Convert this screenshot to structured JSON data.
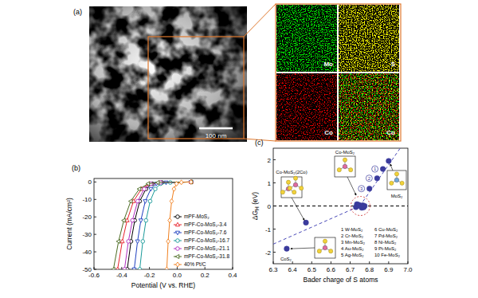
{
  "image_panel": {
    "panel": "(a)",
    "scale_bar": "100 nm",
    "maps": [
      "Mo",
      "S",
      "Co",
      "Co"
    ]
  },
  "chart_data": [
    {
      "type": "line",
      "panel": "(b)",
      "x_label": "Potential (V vs. RHE)",
      "y_label": "Current (mA/cm²)",
      "xlim": [
        -0.6,
        0.4
      ],
      "ylim": [
        -50,
        2
      ],
      "xticks": [
        -0.6,
        -0.4,
        -0.2,
        {
          "value": 0,
          "label": "0.0"
        },
        0.2,
        0.4
      ],
      "yticks": [
        -50,
        -40,
        -30,
        -20,
        -10,
        0
      ],
      "grid": false,
      "legend": "bottom-right",
      "series": [
        {
          "name": "mPF-MoS₂",
          "color": "#000000",
          "marker": "circle",
          "line_style": "solid",
          "x": [
            0.1,
            -0.11,
            -0.18,
            -0.225,
            -0.27,
            -0.306,
            -0.333,
            -0.36
          ],
          "values": [
            0,
            -0.3,
            -1,
            -4,
            -11,
            -22,
            -34,
            -50
          ]
        },
        {
          "name": "mPF-Co-MoS₂-3.4",
          "color": "#e8202a",
          "marker": "triangle",
          "line_style": "solid",
          "x": [
            0.1,
            -0.13,
            -0.2,
            -0.258,
            -0.315,
            -0.361,
            -0.396,
            -0.43
          ],
          "values": [
            0,
            -0.3,
            -1,
            -4,
            -11,
            -22,
            -34,
            -50
          ]
        },
        {
          "name": "mPF-Co-MoS₂-7.6",
          "color": "#1f3fbf",
          "marker": "triangle-down",
          "line_style": "solid",
          "x": [
            0.1,
            -0.08,
            -0.15,
            -0.19,
            -0.23,
            -0.262,
            -0.286,
            -0.31
          ],
          "values": [
            0,
            -0.3,
            -1,
            -4,
            -11,
            -22,
            -34,
            -50
          ]
        },
        {
          "name": "mPF-Co-MoS₂-16.7",
          "color": "#1a9a9a",
          "marker": "circle",
          "line_style": "solid",
          "x": [
            0.1,
            -0.05,
            -0.12,
            -0.158,
            -0.195,
            -0.225,
            -0.248,
            -0.27
          ],
          "values": [
            0,
            -0.3,
            -1,
            -4,
            -11,
            -22,
            -34,
            -50
          ]
        },
        {
          "name": "mPF-Co-MoS₂-21.1",
          "color": "#b030c0",
          "marker": "circle",
          "line_style": "solid",
          "x": [
            0.1,
            -0.12,
            -0.19,
            -0.238,
            -0.285,
            -0.323,
            -0.352,
            -0.38
          ],
          "values": [
            0,
            -0.3,
            -1,
            -4,
            -11,
            -22,
            -34,
            -50
          ]
        },
        {
          "name": "mPF-Co-MoS₂-31.8",
          "color": "#4a6a20",
          "marker": "triangle-left",
          "line_style": "solid",
          "x": [
            0.1,
            -0.14,
            -0.21,
            -0.273,
            -0.335,
            -0.385,
            -0.423,
            -0.46
          ],
          "values": [
            0,
            -0.3,
            -1,
            -4,
            -11,
            -22,
            -34,
            -50
          ]
        },
        {
          "name": "40% Pt/C",
          "color": "#f08020",
          "marker": "diamond",
          "line_style": "solid",
          "x": [
            0.1,
            0.03,
            -0.005,
            -0.023,
            -0.04,
            -0.054,
            -0.065,
            -0.075
          ],
          "values": [
            0,
            -0.2,
            -1,
            -4,
            -11,
            -22,
            -34,
            -50
          ]
        }
      ]
    },
    {
      "type": "scatter",
      "panel": "(c)",
      "x_label": "Bader charge of S atoms",
      "y_label": "ΔGH (eV)",
      "xlim": [
        6.3,
        7.0
      ],
      "ylim": [
        -2.5,
        2.5
      ],
      "xticks": [
        6.3,
        6.4,
        6.5,
        6.6,
        6.7,
        6.8,
        6.9,
        {
          "value": 7,
          "label": "7.0"
        }
      ],
      "yticks": [
        -2,
        -1,
        0,
        1,
        2
      ],
      "grid": false,
      "annotations": [
        "Co-MoS₂(2Co)",
        "Co-MoS₂",
        "MoS₂",
        "CoS₂"
      ],
      "key": [
        "1 W-MoS₂",
        "2 Cr-MoS₂",
        "3 Mn-MoS₂",
        "4 Au-MoS₂",
        "5 Ag-MoS₂",
        "6 Cu-MoS₂",
        "7 Pd-MoS₂",
        "8 Ni-MoS₂",
        "9 Pt-MoS₂",
        "10 Fe-MoS₂"
      ],
      "series": [
        {
          "type": "scatter",
          "color": "#3b3b9c",
          "marker": "circle",
          "x": [
            6.37,
            6.47,
            6.73,
            6.735,
            6.745,
            6.755,
            6.76,
            6.765,
            6.77,
            6.775,
            6.8,
            6.84,
            6.87,
            6.9
          ],
          "values": [
            -1.85,
            -0.72,
            -0.05,
            0.08,
            0.05,
            -0.02,
            -0.08,
            0.03,
            -0.06,
            0.0,
            0.75,
            1.2,
            1.6,
            1.95
          ],
          "point_labels": [
            null,
            null,
            null,
            null,
            null,
            null,
            null,
            null,
            null,
            null,
            "3",
            "2",
            "1",
            null
          ]
        },
        {
          "type": "line",
          "color": "#4a4ab8",
          "line_style": "dashed",
          "x": [
            6.3,
            6.75
          ],
          "values": [
            -1.65,
            0
          ]
        },
        {
          "type": "line",
          "color": "#4a4ab8",
          "line_style": "dashed",
          "x": [
            6.75,
            6.96
          ],
          "values": [
            0,
            2.5
          ]
        },
        {
          "type": "line",
          "color": "#000000",
          "line_style": "dashed",
          "x": [
            6.3,
            7.0
          ],
          "values": [
            0,
            0
          ]
        }
      ]
    }
  ]
}
